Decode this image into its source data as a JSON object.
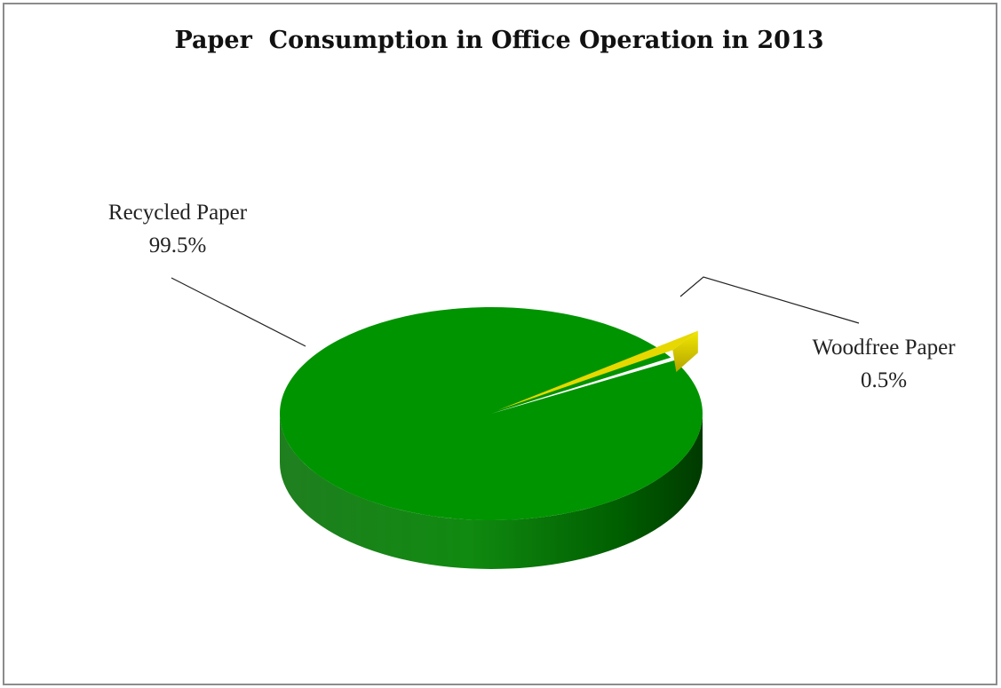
{
  "chart_data": {
    "type": "pie",
    "title": "Paper  Consumption in Office Operation in 2013",
    "categories": [
      "Recycled Paper",
      "Woodfree Paper"
    ],
    "values": [
      99.5,
      0.5
    ],
    "value_labels": [
      "99.5%",
      "0.5%"
    ],
    "colors": [
      "#009400",
      "#e6d800"
    ],
    "style": "3d",
    "legend": "none"
  }
}
